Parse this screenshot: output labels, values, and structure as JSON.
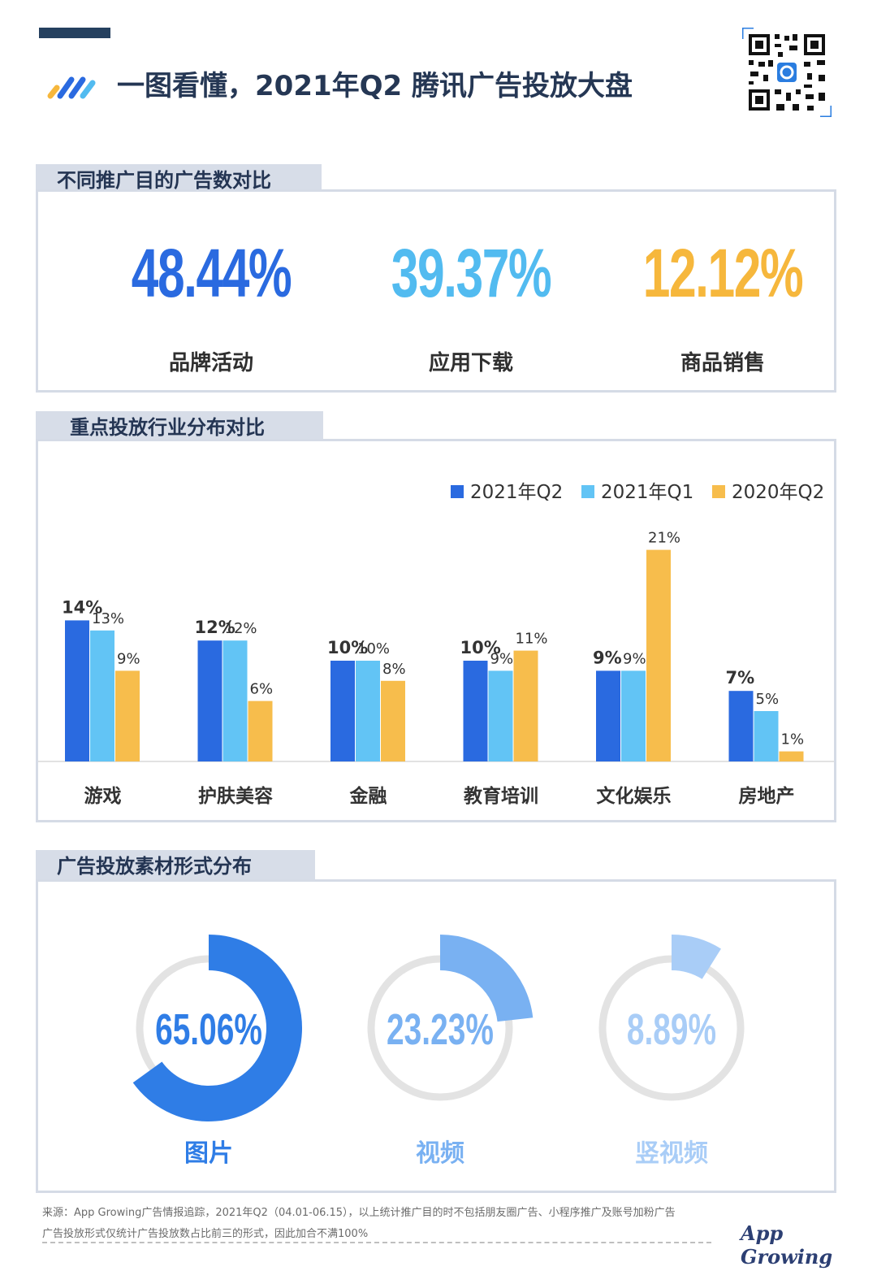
{
  "header": {
    "title": "一图看懂，2021年Q2 腾讯广告投放大盘"
  },
  "sections": {
    "purpose_title": "不同推广目的广告数对比",
    "industry_title": "重点投放行业分布对比",
    "format_title": "广告投放素材形式分布"
  },
  "purpose": {
    "items": [
      {
        "value": "48.44%",
        "label": "品牌活动",
        "color": "#2a6ae0"
      },
      {
        "value": "39.37%",
        "label": "应用下载",
        "color": "#52bbf0"
      },
      {
        "value": "12.12%",
        "label": "商品销售",
        "color": "#f6b73c"
      }
    ]
  },
  "footer": {
    "note1": "来源：App Growing广告情报追踪，2021年Q2（04.01-06.15），以上统计推广目的时不包括朋友圈广告、小程序推广及账号加粉广告",
    "note2": "广告投放形式仅统计广告投放数占比前三的形式，因此加合不满100%",
    "brand": "App Growing"
  },
  "chart_data": [
    {
      "type": "bar",
      "title": "重点投放行业分布对比",
      "categories": [
        "游戏",
        "护肤美容",
        "金融",
        "教育培训",
        "文化娱乐",
        "房地产"
      ],
      "series": [
        {
          "name": "2021年Q2",
          "color": "#2a6ae0",
          "values": [
            14,
            12,
            10,
            10,
            9,
            7
          ],
          "labels": [
            "14%",
            "12%",
            "10%",
            "10%",
            "9%",
            "7%"
          ]
        },
        {
          "name": "2021年Q1",
          "color": "#62c4f5",
          "values": [
            13,
            12,
            10,
            9,
            9,
            5
          ],
          "labels": [
            "13%",
            "12%",
            "10%",
            "9%",
            "9%",
            "5%"
          ]
        },
        {
          "name": "2020年Q2",
          "color": "#f7bd4c",
          "values": [
            9,
            6,
            8,
            11,
            21,
            1
          ],
          "labels": [
            "9%",
            "6%",
            "8%",
            "11%",
            "21%",
            "1%"
          ]
        }
      ],
      "legend_position": "top-right",
      "grid": false
    },
    {
      "type": "pie",
      "title": "广告投放素材形式分布",
      "categories": [
        "图片",
        "视频",
        "竖视频"
      ],
      "values": [
        65.06,
        23.23,
        8.89
      ],
      "labels": [
        "65.06%",
        "23.23%",
        "8.89%"
      ],
      "colors": [
        "#2f7de6",
        "#79b1f2",
        "#a9cdf7"
      ]
    }
  ]
}
